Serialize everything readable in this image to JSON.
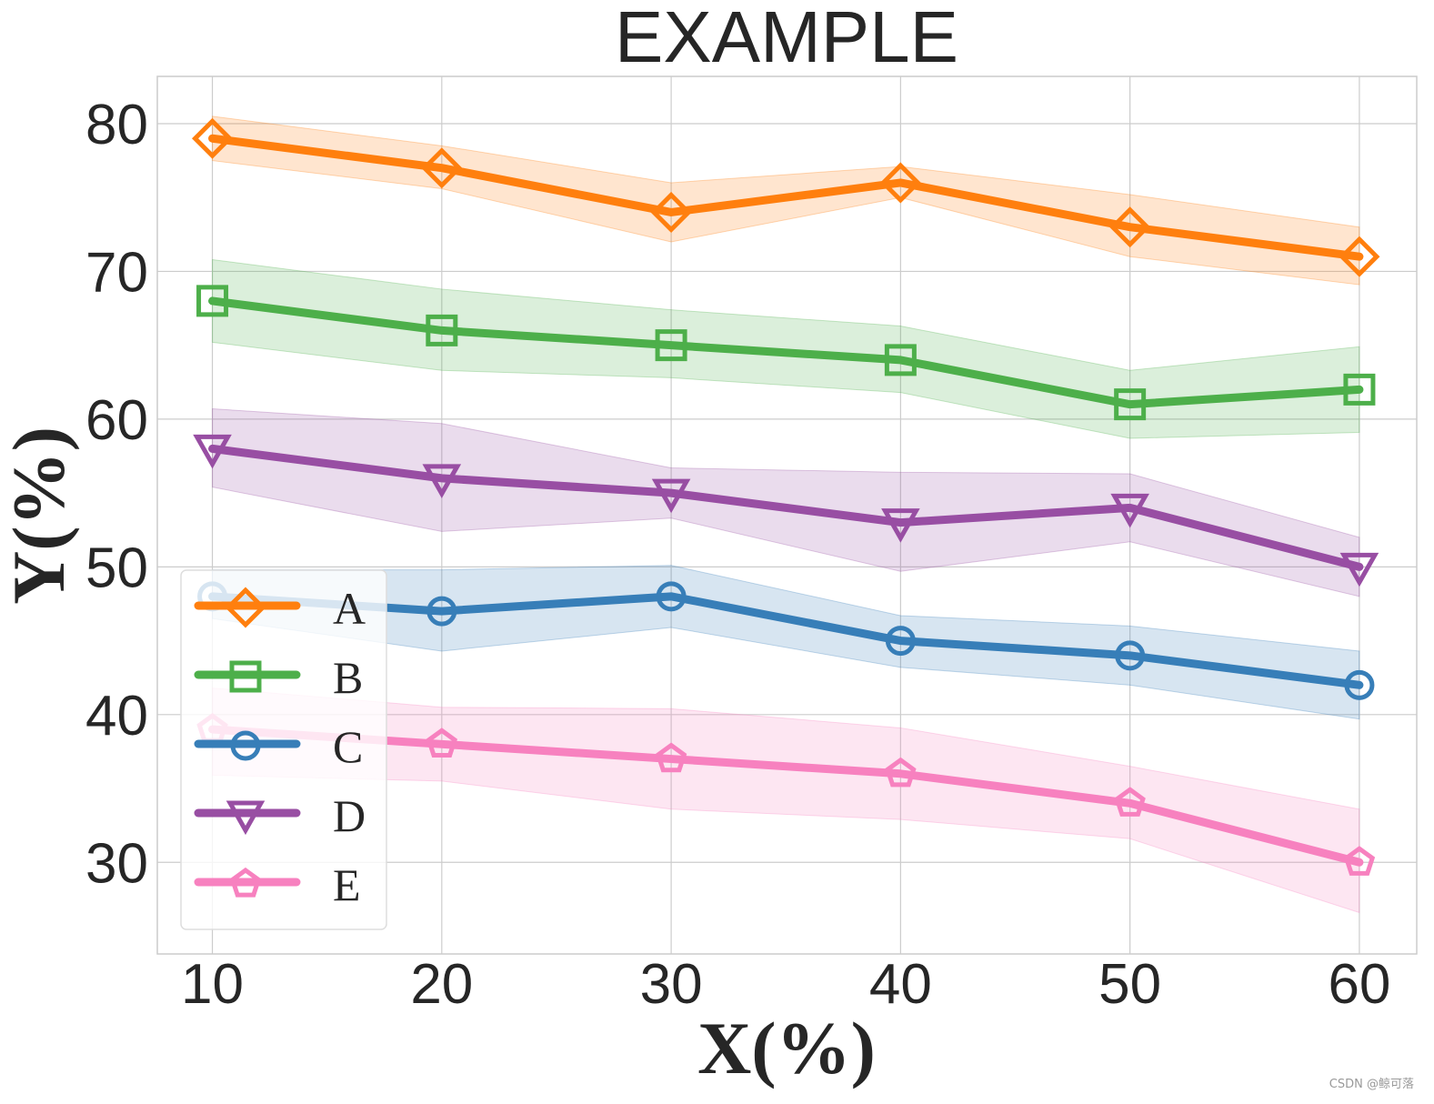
{
  "chart_data": {
    "type": "line",
    "title": "EXAMPLE",
    "xlabel": "X(%)",
    "ylabel": "Y(%)",
    "x": [
      10,
      20,
      30,
      40,
      50,
      60
    ],
    "xlim": [
      7.6,
      62.5
    ],
    "ylim": [
      23.8,
      83.2
    ],
    "xticks": [
      10,
      20,
      30,
      40,
      50,
      60
    ],
    "yticks": [
      30,
      40,
      50,
      60,
      70,
      80
    ],
    "grid": true,
    "legend": "bottom-left",
    "series": [
      {
        "name": "A",
        "color": "#ff7f0e",
        "marker": "diamond",
        "values": [
          79,
          77,
          74,
          76,
          73,
          71
        ],
        "upper": [
          80.5,
          78.5,
          76,
          77.1,
          75.2,
          73
        ],
        "lower": [
          77.5,
          75.6,
          72,
          75,
          71,
          69.1
        ]
      },
      {
        "name": "B",
        "color": "#4daf4a",
        "marker": "square",
        "values": [
          68,
          66,
          65,
          64,
          61,
          62
        ],
        "upper": [
          70.8,
          68.8,
          67.4,
          66.3,
          63.3,
          64.9
        ],
        "lower": [
          65.2,
          63.3,
          62.8,
          61.8,
          58.7,
          59.1
        ]
      },
      {
        "name": "C",
        "color": "#377eb8",
        "marker": "circle",
        "values": [
          48,
          47,
          48,
          45,
          44,
          42
        ],
        "upper": [
          49.8,
          49.8,
          50.1,
          46.7,
          46,
          44.3
        ],
        "lower": [
          46.5,
          44.3,
          45.9,
          43.2,
          42,
          39.7
        ]
      },
      {
        "name": "D",
        "color": "#984ea3",
        "marker": "triangle-down",
        "values": [
          58,
          56,
          55,
          53,
          54,
          50
        ],
        "upper": [
          60.7,
          59.7,
          56.7,
          56.4,
          56.3,
          52
        ],
        "lower": [
          55.4,
          52.4,
          53.3,
          49.7,
          51.7,
          48
        ]
      },
      {
        "name": "E",
        "color": "#f781bf",
        "marker": "pentagon",
        "values": [
          39,
          38,
          37,
          36,
          34,
          30
        ],
        "upper": [
          41.8,
          40.5,
          40.4,
          39.1,
          36.5,
          33.6
        ],
        "lower": [
          35.9,
          35.5,
          33.6,
          32.9,
          31.6,
          26.6
        ]
      }
    ]
  },
  "watermark": "CSDN @鲸可落"
}
